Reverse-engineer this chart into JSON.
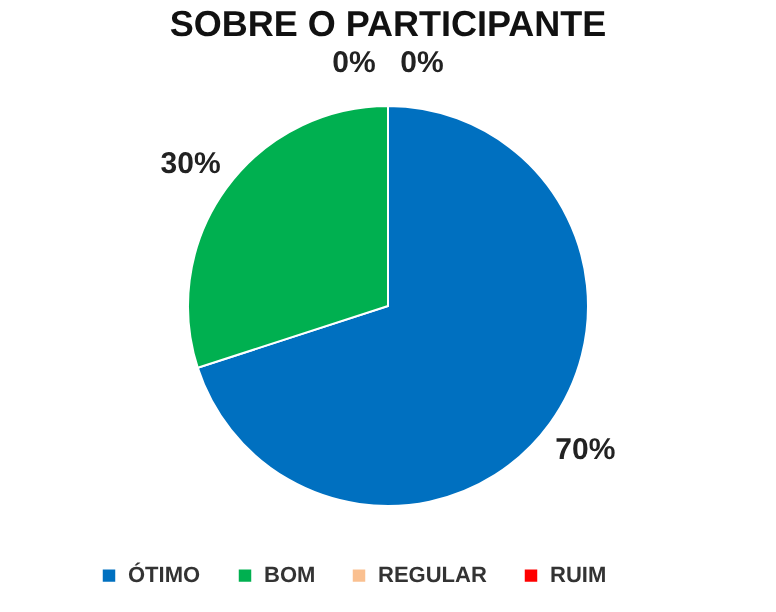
{
  "chart_data": {
    "type": "pie",
    "title": "SOBRE O PARTICIPANTE",
    "categories": [
      "ÓTIMO",
      "BOM",
      "REGULAR",
      "RUIM"
    ],
    "values": [
      70,
      30,
      0,
      0
    ],
    "value_labels": [
      "70%",
      "30%",
      "0%",
      "0%"
    ],
    "colors": [
      "#0070c0",
      "#00b050",
      "#fac090",
      "#ff0000"
    ],
    "legend": "bottom"
  }
}
